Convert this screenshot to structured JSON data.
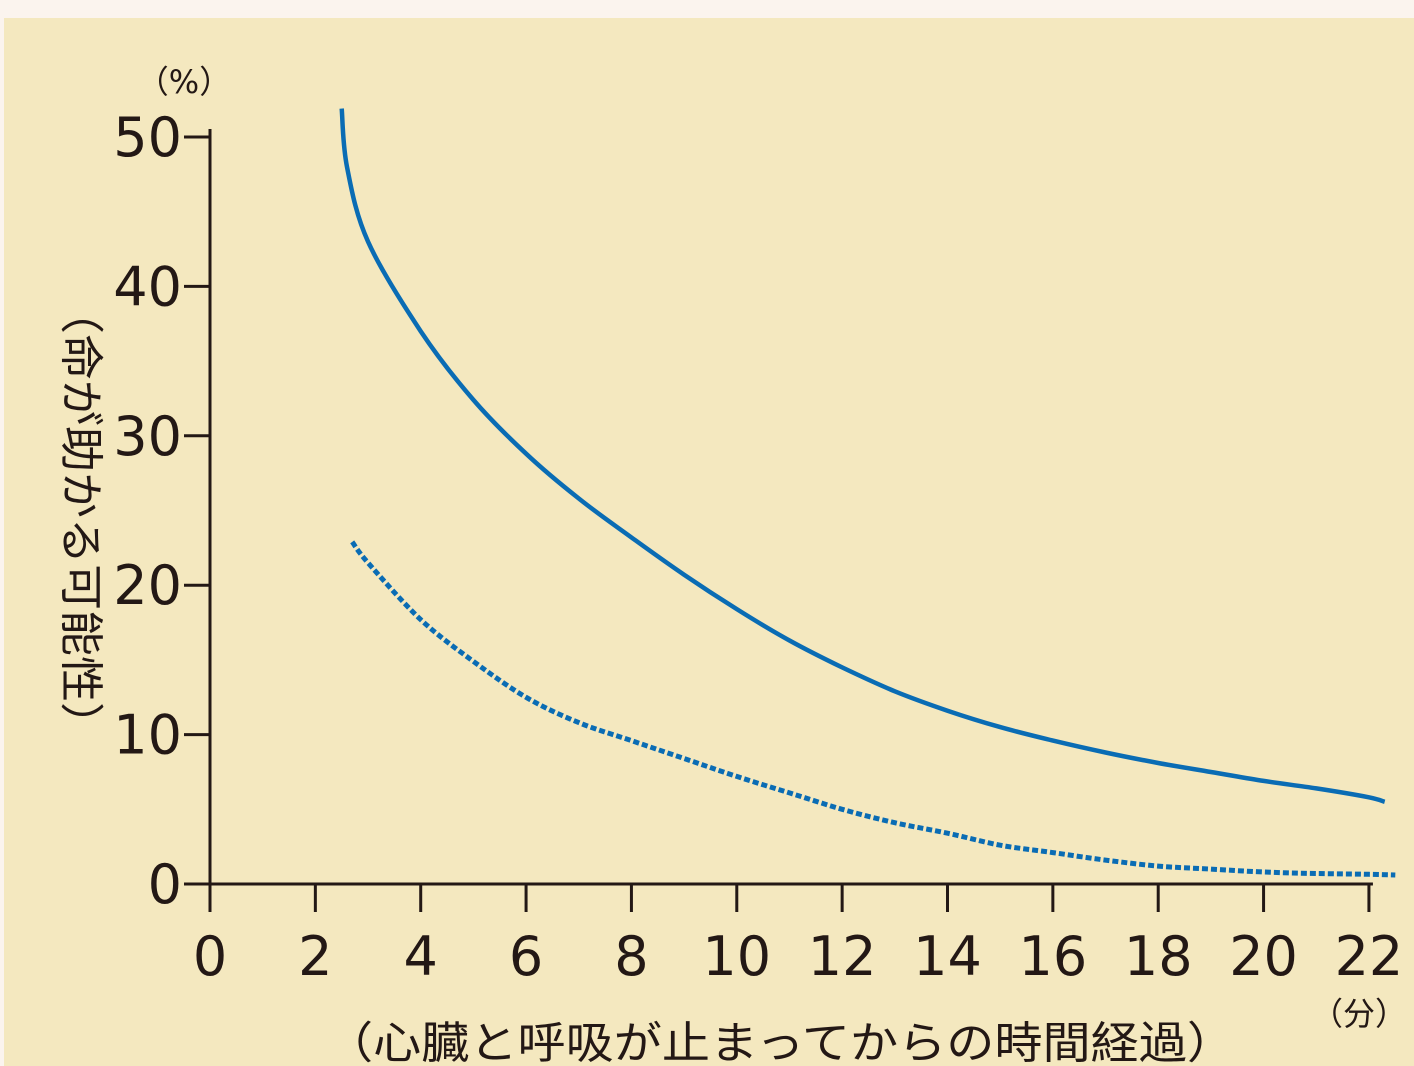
{
  "chart_data": {
    "type": "line",
    "xlabel": "（心臓と呼吸が止まってからの時間経過）",
    "ylabel": "（命が助かる可能性）",
    "x_unit": "（分）",
    "y_unit": "（%）",
    "xlim": [
      0,
      22.4
    ],
    "ylim": [
      0,
      50
    ],
    "x_ticks": [
      0,
      2,
      4,
      6,
      8,
      10,
      12,
      14,
      16,
      18,
      20,
      22
    ],
    "y_ticks": [
      0,
      10,
      20,
      30,
      40,
      50
    ],
    "grid": false,
    "colors": {
      "axis": "#231815",
      "line": "#0a6cb4"
    },
    "series": [
      {
        "style": "solid",
        "x": [
          2.5,
          2.6,
          3.0,
          4.0,
          5.0,
          6.0,
          7.0,
          8.0,
          9.0,
          10.0,
          11.0,
          12.0,
          13.0,
          14.0,
          15.0,
          16.0,
          17.0,
          18.0,
          19.0,
          20.0,
          21.0,
          22.0,
          22.3
        ],
        "y": [
          51.9,
          48.0,
          43.0,
          37.0,
          32.4,
          28.8,
          25.8,
          23.2,
          20.7,
          18.4,
          16.3,
          14.5,
          12.9,
          11.6,
          10.5,
          9.6,
          8.8,
          8.1,
          7.5,
          6.9,
          6.4,
          5.8,
          5.5
        ]
      },
      {
        "style": "dotted",
        "x": [
          2.7,
          3.0,
          4.0,
          5.0,
          6.0,
          7.0,
          8.0,
          9.0,
          10.0,
          11.0,
          12.0,
          13.0,
          14.0,
          15.0,
          16.0,
          17.0,
          18.0,
          19.0,
          20.0,
          21.0,
          22.0,
          22.5
        ],
        "y": [
          22.9,
          21.5,
          17.7,
          14.9,
          12.5,
          10.8,
          9.6,
          8.4,
          7.2,
          6.1,
          5.0,
          4.1,
          3.4,
          2.6,
          2.1,
          1.6,
          1.2,
          1.0,
          0.8,
          0.7,
          0.65,
          0.6
        ]
      }
    ]
  }
}
